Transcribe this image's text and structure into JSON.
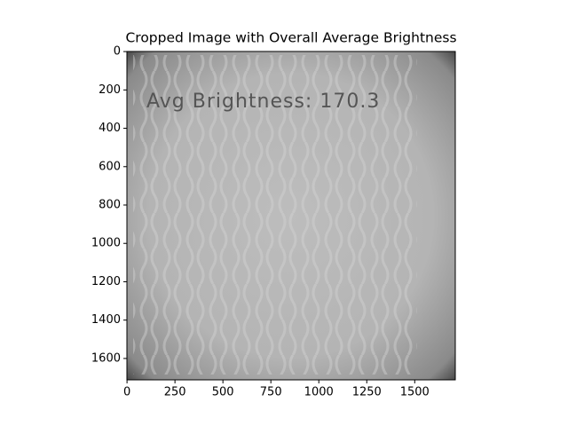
{
  "chart_data": {
    "type": "image",
    "title": "Cropped Image with Overall Average Brightness",
    "annotation": "Avg Brightness: 170.3",
    "xlim": [
      -0.5,
      1711.5
    ],
    "ylim": [
      1711.5,
      -0.5
    ],
    "xticks": [
      0,
      250,
      500,
      750,
      1000,
      1250,
      1500
    ],
    "yticks": [
      0,
      200,
      400,
      600,
      800,
      1000,
      1200,
      1400,
      1600
    ]
  }
}
